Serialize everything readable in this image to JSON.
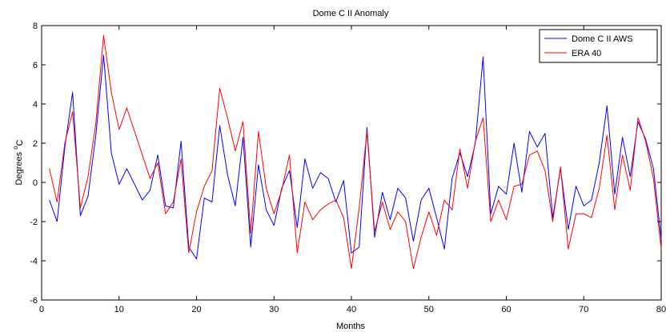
{
  "chart_data": {
    "type": "line",
    "title": "Dome C II Anomaly",
    "xlabel": "Months",
    "ylabel": "Degrees",
    "ylabel_sup": "o",
    "ylabel_sub": "C",
    "xlim": [
      0,
      80
    ],
    "ylim": [
      -6,
      8
    ],
    "xticks": [
      "0",
      "10",
      "20",
      "30",
      "40",
      "50",
      "60",
      "70",
      "80"
    ],
    "yticks": [
      "-6",
      "-4",
      "-2",
      "0",
      "2",
      "4",
      "6",
      "8"
    ],
    "grid": false,
    "legend_position": "top-right",
    "x": [
      1,
      2,
      3,
      4,
      5,
      6,
      7,
      8,
      9,
      10,
      11,
      12,
      13,
      14,
      15,
      16,
      17,
      18,
      19,
      20,
      21,
      22,
      23,
      24,
      25,
      26,
      27,
      28,
      29,
      30,
      31,
      32,
      33,
      34,
      35,
      36,
      37,
      38,
      39,
      40,
      41,
      42,
      43,
      44,
      45,
      46,
      47,
      48,
      49,
      50,
      51,
      52,
      53,
      54,
      55,
      56,
      57,
      58,
      59,
      60,
      61,
      62,
      63,
      64,
      65,
      66,
      67,
      68,
      69,
      70,
      71,
      72,
      73,
      74,
      75,
      76,
      77,
      78,
      79,
      80
    ],
    "series": [
      {
        "name": "Dome C II AWS",
        "color": "#0000ff",
        "values": [
          -0.9,
          -2.0,
          1.8,
          4.6,
          -1.7,
          -0.7,
          2.4,
          6.5,
          1.5,
          -0.1,
          0.7,
          -0.1,
          -0.9,
          -0.4,
          1.4,
          -1.2,
          -1.3,
          2.1,
          -3.3,
          -3.9,
          -0.8,
          -1.0,
          2.9,
          0.4,
          -1.2,
          2.3,
          -3.3,
          0.9,
          -1.4,
          -2.2,
          -0.3,
          0.6,
          -2.3,
          1.2,
          -0.3,
          0.5,
          0.2,
          -1.0,
          0.1,
          -3.6,
          -3.3,
          2.8,
          -2.8,
          -0.5,
          -1.9,
          -0.3,
          -0.8,
          -3.0,
          -0.9,
          -0.3,
          -1.8,
          -3.4,
          0.2,
          1.5,
          0.3,
          2.0,
          6.4,
          -1.6,
          -0.2,
          -0.6,
          2.0,
          -0.5,
          2.6,
          1.8,
          2.5,
          -1.8,
          0.7,
          -2.4,
          -0.2,
          -1.2,
          -0.9,
          1.0,
          3.9,
          -0.6,
          2.3,
          0.3,
          3.1,
          2.2,
          0.7,
          -2.9
        ]
      },
      {
        "name": "ERA 40",
        "color": "#ff0000",
        "values": [
          0.7,
          -1.0,
          2.0,
          3.6,
          -1.3,
          0.3,
          3.0,
          7.5,
          4.6,
          2.7,
          3.8,
          2.6,
          1.4,
          0.2,
          1.0,
          -1.6,
          -1.0,
          1.2,
          -3.6,
          -1.5,
          -0.2,
          0.6,
          4.8,
          3.3,
          1.6,
          3.1,
          -2.6,
          2.6,
          -0.3,
          -1.6,
          -0.4,
          1.4,
          -3.6,
          -1.0,
          -1.9,
          -1.4,
          -1.1,
          -0.9,
          -1.8,
          -4.4,
          -1.3,
          2.6,
          -2.5,
          -1.0,
          -2.4,
          -1.5,
          -2.0,
          -4.4,
          -2.8,
          -1.5,
          -2.7,
          -0.9,
          -1.4,
          1.7,
          -0.3,
          2.1,
          3.3,
          -2.0,
          -0.9,
          -1.9,
          -0.2,
          -0.1,
          1.4,
          1.6,
          0.6,
          -2.0,
          0.8,
          -3.4,
          -1.6,
          -1.6,
          -1.8,
          -0.3,
          2.4,
          -1.4,
          1.4,
          -0.4,
          3.3,
          2.1,
          0.2,
          -3.4
        ]
      }
    ]
  }
}
